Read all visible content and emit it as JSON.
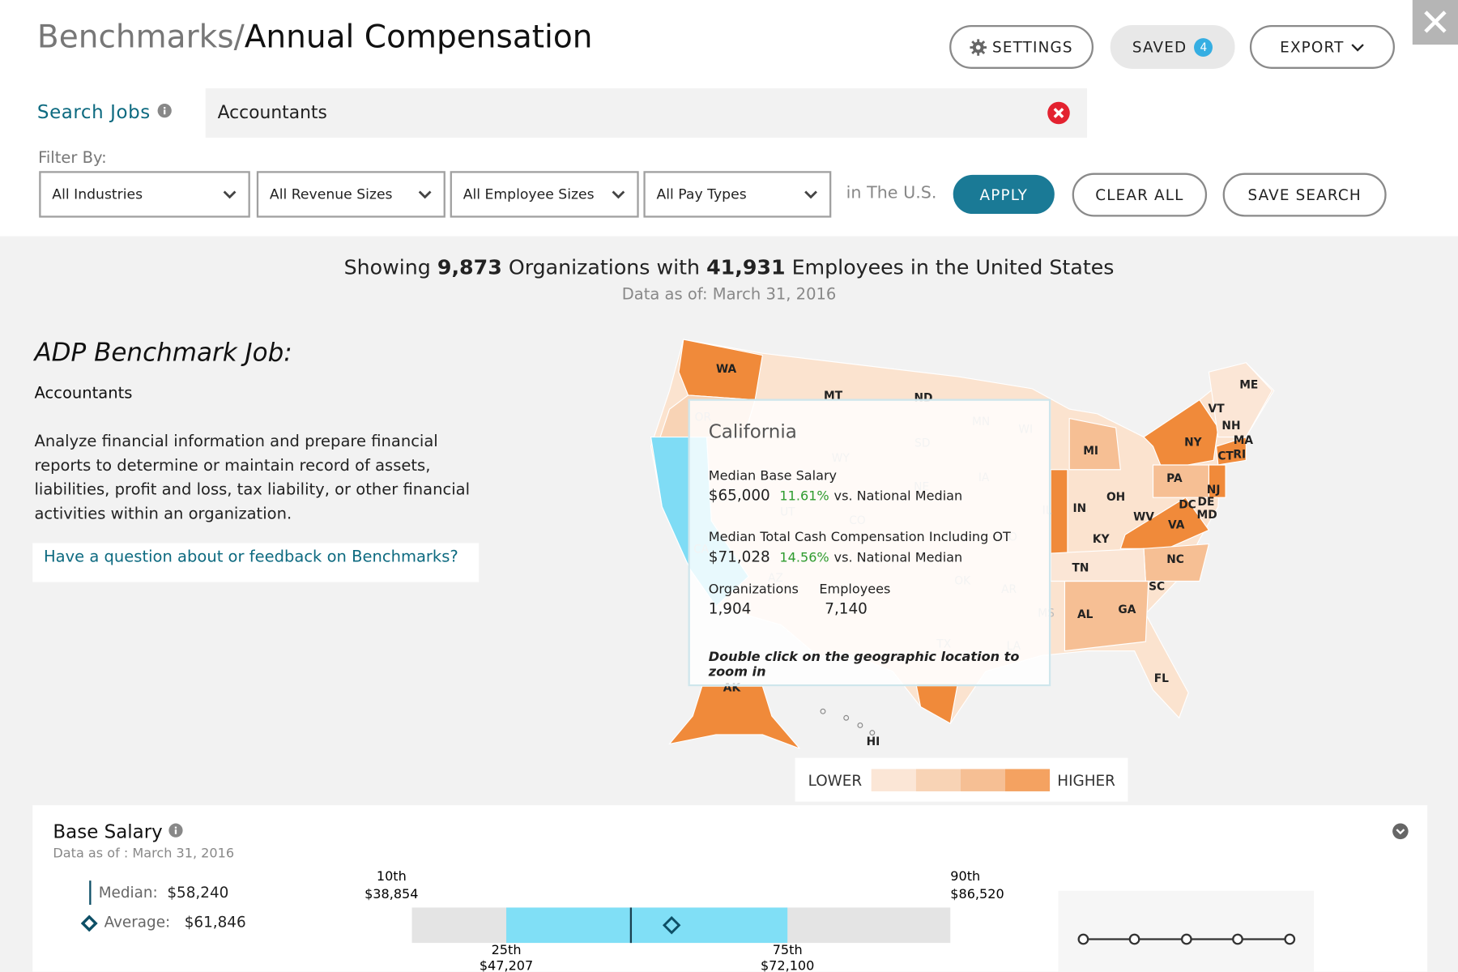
{
  "header": {
    "breadcrumb": "Benchmarks/",
    "title": "Annual Compensation",
    "buttons": {
      "settings": "SETTINGS",
      "saved": "SAVED",
      "saved_count": "4",
      "export": "EXPORT"
    }
  },
  "search": {
    "label": "Search Jobs",
    "value": "Accountants"
  },
  "filter": {
    "label": "Filter By:",
    "dropdowns": [
      "All Industries",
      "All Revenue Sizes",
      "All Employee Sizes",
      "All Pay Types"
    ],
    "scope": "in The U.S.",
    "apply": "APPLY",
    "clear": "CLEAR ALL",
    "save": "SAVE SEARCH"
  },
  "summary": {
    "showing": "Showing",
    "organizations": "9,873",
    "organizations_text": "Organizations with",
    "employees": "41,931",
    "employees_text": "Employees in the United States",
    "date_label": "Data as of:",
    "date": "March 31, 2016"
  },
  "job": {
    "heading": "ADP Benchmark Job:",
    "name": "Accountants",
    "description": "Analyze financial information and prepare financial reports to determine or maintain record of assets, liabilities, profit and loss, tax liability, or other financial activities within an organization.",
    "feedback_link": "Have a question about or feedback on Benchmarks?"
  },
  "map": {
    "states": [
      "WA",
      "MT",
      "ND",
      "ME",
      "VT",
      "NH",
      "MA",
      "NY",
      "CT",
      "RI",
      "MI",
      "PA",
      "NJ",
      "DE",
      "DC",
      "MD",
      "OH",
      "IN",
      "WV",
      "VA",
      "KY",
      "TN",
      "NC",
      "SC",
      "AL",
      "GA",
      "FL",
      "AK",
      "HI"
    ],
    "faded_states": [
      "OR",
      "MN",
      "WI",
      "SD",
      "WY",
      "IA",
      "NE",
      "UT",
      "IL",
      "CO",
      "MO",
      "CA",
      "AZ",
      "OK",
      "AR",
      "MS",
      "TX",
      "LA"
    ],
    "legend": {
      "low": "LOWER",
      "high": "HIGHER"
    },
    "tooltip": {
      "title": "California",
      "base_label": "Median Base Salary",
      "base_value": "$65,000",
      "base_diff": "11.61%",
      "base_vs": "vs. National Median",
      "cash_label": "Median Total Cash Compensation Including OT",
      "cash_value": "$71,028",
      "cash_diff": "14.56%",
      "cash_vs": "vs. National Median",
      "org_label": "Organizations",
      "org_value": "1,904",
      "emp_label": "Employees",
      "emp_value": "7,140",
      "hint": "Double click on the geographic location to zoom in"
    }
  },
  "base_salary": {
    "title": "Base Salary",
    "date_label": "Data as of :",
    "date": "March 31, 2016",
    "median_label": "Median:",
    "median": "$58,240",
    "average_label": "Average:",
    "average": "$61,846",
    "percentiles": [
      {
        "label": "10th",
        "value": "$38,854"
      },
      {
        "label": "25th",
        "value": "$47,207"
      },
      {
        "label": "75th",
        "value": "$72,100"
      },
      {
        "label": "90th",
        "value": "$86,520"
      }
    ]
  }
}
